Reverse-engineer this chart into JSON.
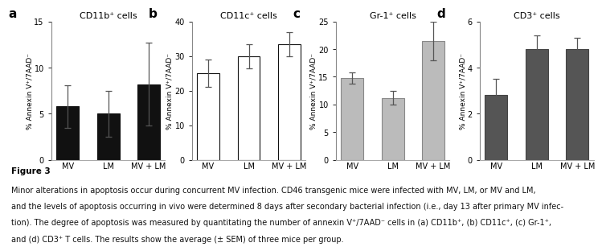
{
  "panels": [
    {
      "label": "a",
      "title": "CD11b⁺ cells",
      "bar_color": "#111111",
      "edge_color": "#111111",
      "categories": [
        "MV",
        "LM",
        "MV + LM"
      ],
      "values": [
        5.8,
        5.0,
        8.2
      ],
      "errors": [
        2.3,
        2.5,
        4.5
      ],
      "ylim": [
        0,
        15
      ],
      "yticks": [
        0,
        5,
        10,
        15
      ],
      "ylabel": "% Annexin V⁺/7AAD⁻"
    },
    {
      "label": "b",
      "title": "CD11c⁺ cells",
      "bar_color": "#ffffff",
      "edge_color": "#111111",
      "categories": [
        "MV",
        "LM",
        "MV + LM"
      ],
      "values": [
        25.0,
        30.0,
        33.5
      ],
      "errors": [
        4.0,
        3.5,
        3.5
      ],
      "ylim": [
        0,
        40
      ],
      "yticks": [
        0,
        10,
        20,
        30,
        40
      ],
      "ylabel": "% Annexin V⁺/7AAD⁻"
    },
    {
      "label": "c",
      "title": "Gr-1⁺ cells",
      "bar_color": "#bbbbbb",
      "edge_color": "#888888",
      "categories": [
        "MV",
        "LM",
        "MV + LM"
      ],
      "values": [
        14.8,
        11.2,
        21.5
      ],
      "errors": [
        1.0,
        1.2,
        3.5
      ],
      "ylim": [
        0,
        25
      ],
      "yticks": [
        0,
        5,
        10,
        15,
        20,
        25
      ],
      "ylabel": "% Annexin V⁺/7AAD⁻"
    },
    {
      "label": "d",
      "title": "CD3⁺ cells",
      "bar_color": "#555555",
      "edge_color": "#444444",
      "categories": [
        "MV",
        "LM",
        "MV + LM"
      ],
      "values": [
        2.8,
        4.8,
        4.8
      ],
      "errors": [
        0.7,
        0.6,
        0.5
      ],
      "ylim": [
        0,
        6
      ],
      "yticks": [
        0,
        2,
        4,
        6
      ],
      "ylabel": "% Annexin V⁺/7AAD⁻"
    }
  ],
  "caption_bold": "Figure 3",
  "caption_line1": "Minor alterations in apoptosis occur during concurrent MV infection. CD46 transgenic mice were infected with MV, LM, or MV and LM,",
  "caption_line2": "and the levels of apoptosis occurring in vivo were determined 8 days after secondary bacterial infection (i.e., day 13 after primary MV infec-",
  "caption_line3": "tion). The degree of apoptosis was measured by quantitating the number of annexin V⁺/7AAD⁻ cells in (a) CD11b⁺, (b) CD11c⁺, (c) Gr-1⁺,",
  "caption_line4": "and (d) CD3⁺ T cells. The results show the average (± SEM) of three mice per group.",
  "bg_color": "#ffffff"
}
